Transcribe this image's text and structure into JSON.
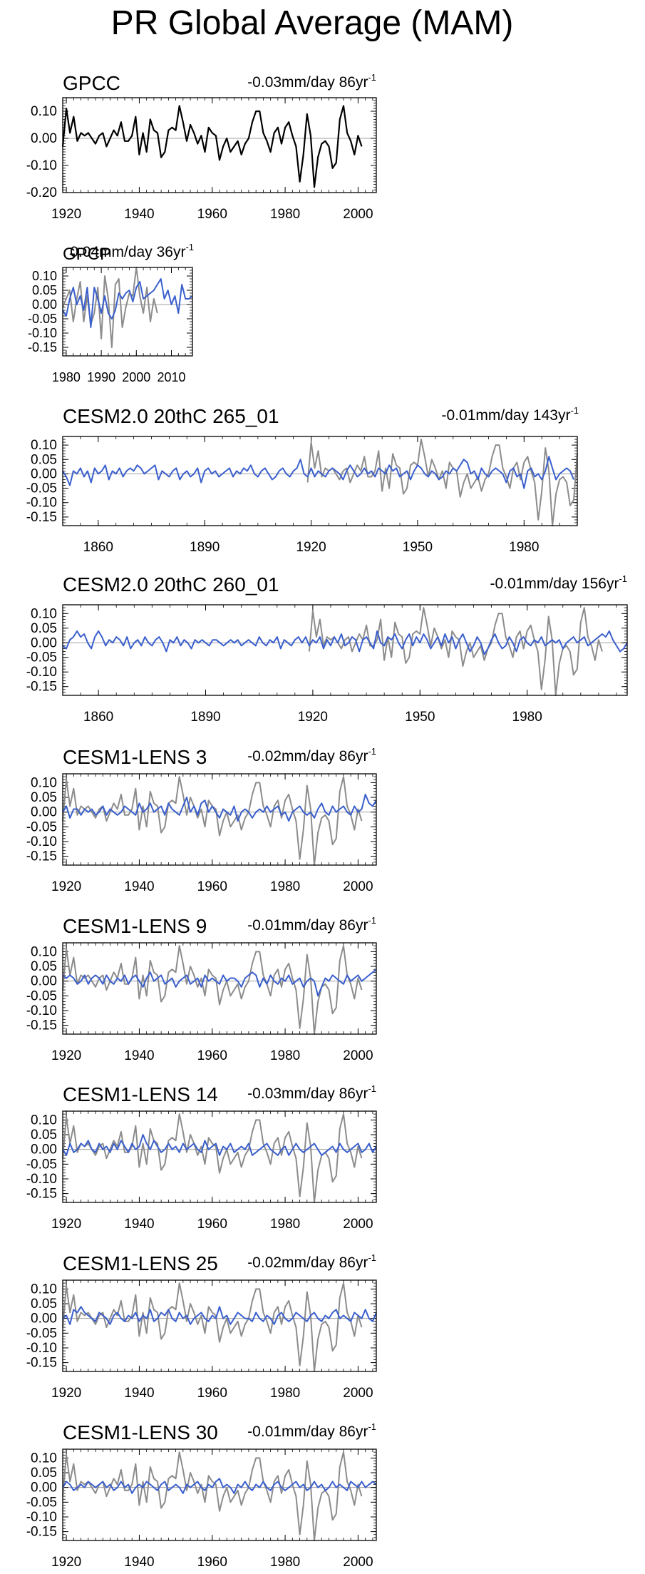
{
  "figure_title": "PR Global Average (MAM)",
  "colors": {
    "obs": "#8c8c8c",
    "model": "#3a5fcd",
    "gpcc": "#000000",
    "zero": "#a0a0a0",
    "frame": "#000000"
  },
  "chart_data": [
    {
      "type": "line",
      "title": "GPCC",
      "trend_value": "-0.03mm/day 86",
      "trend_unit": "yr",
      "trend_exp": "-1",
      "xlim": [
        1919,
        2005
      ],
      "ylim": [
        -0.2,
        0.15
      ],
      "xticks": [
        "1920",
        "1940",
        "1960",
        "1980",
        "2000"
      ],
      "yticks": [
        "0.10",
        "0.00",
        "-0.10",
        "-0.20"
      ],
      "series": [
        {
          "name": "GPCC",
          "color": "#000000",
          "x0": 1919,
          "values": [
            -0.03,
            0.11,
            0.02,
            0.08,
            -0.01,
            0.02,
            0.01,
            0.02,
            0.0,
            -0.02,
            0.01,
            0.02,
            -0.03,
            0.0,
            0.03,
            0.01,
            0.06,
            -0.01,
            -0.01,
            0.01,
            0.08,
            -0.06,
            0.02,
            -0.05,
            0.07,
            0.03,
            0.02,
            -0.07,
            -0.05,
            0.03,
            0.04,
            0.03,
            0.12,
            0.06,
            -0.01,
            0.05,
            0.02,
            -0.02,
            0.01,
            -0.05,
            0.04,
            0.02,
            0.01,
            -0.08,
            -0.03,
            0.0,
            -0.05,
            -0.03,
            -0.01,
            -0.06,
            -0.02,
            0.0,
            0.06,
            0.1,
            0.1,
            0.02,
            -0.01,
            -0.05,
            0.02,
            0.04,
            -0.02,
            0.04,
            0.06,
            0.01,
            -0.03,
            -0.16,
            -0.06,
            0.09,
            0.01,
            -0.18,
            -0.07,
            -0.02,
            -0.01,
            -0.03,
            -0.11,
            -0.09,
            0.07,
            0.12,
            0.02,
            -0.01,
            -0.06,
            0.01,
            -0.03
          ]
        }
      ]
    },
    {
      "type": "line",
      "title": "GPCP",
      "trend_value": "0.04mm/day 36",
      "trend_unit": "yr",
      "trend_exp": "-1",
      "xlim": [
        1979,
        2016
      ],
      "ylim": [
        -0.18,
        0.13
      ],
      "xticks": [
        "1980",
        "1990",
        "2000",
        "2010"
      ],
      "yticks": [
        "0.10",
        "0.05",
        "0.00",
        "-0.05",
        "-0.10",
        "-0.15"
      ],
      "series": [
        {
          "name": "GPCC",
          "color": "#8c8c8c",
          "x0": 1979,
          "values": [
            -0.01,
            0.02,
            0.05,
            -0.06,
            0.02,
            0.08,
            -0.06,
            0.03,
            -0.07,
            -0.03,
            0.06,
            -0.12,
            0.1,
            0.02,
            -0.15,
            0.07,
            0.09,
            -0.08,
            -0.01,
            0.04,
            0.03,
            0.13,
            0.03,
            -0.03,
            0.06,
            -0.06,
            0.02,
            -0.03
          ]
        },
        {
          "name": "GPCP",
          "color": "#3a5fcd",
          "x0": 1979,
          "values": [
            -0.02,
            -0.04,
            0.02,
            0.06,
            0.0,
            0.03,
            -0.02,
            0.06,
            -0.08,
            0.06,
            0.02,
            -0.03,
            0.03,
            -0.03,
            -0.05,
            -0.02,
            0.04,
            0.02,
            0.04,
            0.05,
            0.01,
            0.06,
            0.08,
            0.02,
            0.03,
            0.04,
            0.05,
            0.07,
            0.09,
            0.02,
            0.05,
            0.0,
            0.03,
            -0.03,
            0.07,
            0.02,
            0.02,
            0.03
          ]
        }
      ]
    },
    {
      "type": "line",
      "title": "CESM2.0 20thC 265_01",
      "trend_value": "-0.01mm/day 143",
      "trend_unit": "yr",
      "trend_exp": "-1",
      "xlim": [
        1850,
        1995
      ],
      "ylim": [
        -0.18,
        0.13
      ],
      "xticks": [
        "1860",
        "1890",
        "1920",
        "1950",
        "1980"
      ],
      "yticks": [
        "0.10",
        "0.05",
        "0.00",
        "-0.05",
        "-0.10",
        "-0.15"
      ],
      "series": []
    },
    {
      "type": "line",
      "title": "CESM2.0 20thC 260_01",
      "trend_value": "-0.01mm/day 156",
      "trend_unit": "yr",
      "trend_exp": "-1",
      "xlim": [
        1850,
        2008
      ],
      "ylim": [
        -0.18,
        0.13
      ],
      "xticks": [
        "1860",
        "1890",
        "1920",
        "1950",
        "1980"
      ],
      "yticks": [
        "0.10",
        "0.05",
        "0.00",
        "-0.05",
        "-0.10",
        "-0.15"
      ],
      "series": []
    },
    {
      "type": "line",
      "title": "CESM1-LENS 3",
      "trend_value": "-0.02mm/day 86",
      "trend_unit": "yr",
      "trend_exp": "-1",
      "xlim": [
        1919,
        2005
      ],
      "ylim": [
        -0.18,
        0.13
      ],
      "xticks": [
        "1920",
        "1940",
        "1960",
        "1980",
        "2000"
      ],
      "yticks": [
        "0.10",
        "0.05",
        "0.00",
        "-0.05",
        "-0.10",
        "-0.15"
      ],
      "series": []
    },
    {
      "type": "line",
      "title": "CESM1-LENS 9",
      "trend_value": "-0.01mm/day 86",
      "trend_unit": "yr",
      "trend_exp": "-1",
      "xlim": [
        1919,
        2005
      ],
      "ylim": [
        -0.18,
        0.13
      ],
      "xticks": [
        "1920",
        "1940",
        "1960",
        "1980",
        "2000"
      ],
      "yticks": [
        "0.10",
        "0.05",
        "0.00",
        "-0.05",
        "-0.10",
        "-0.15"
      ],
      "series": []
    },
    {
      "type": "line",
      "title": "CESM1-LENS 14",
      "trend_value": "-0.03mm/day 86",
      "trend_unit": "yr",
      "trend_exp": "-1",
      "xlim": [
        1919,
        2005
      ],
      "ylim": [
        -0.18,
        0.13
      ],
      "xticks": [
        "1920",
        "1940",
        "1960",
        "1980",
        "2000"
      ],
      "yticks": [
        "0.10",
        "0.05",
        "0.00",
        "-0.05",
        "-0.10",
        "-0.15"
      ],
      "series": []
    },
    {
      "type": "line",
      "title": "CESM1-LENS 25",
      "trend_value": "-0.02mm/day 86",
      "trend_unit": "yr",
      "trend_exp": "-1",
      "xlim": [
        1919,
        2005
      ],
      "ylim": [
        -0.18,
        0.13
      ],
      "xticks": [
        "1920",
        "1940",
        "1960",
        "1980",
        "2000"
      ],
      "yticks": [
        "0.10",
        "0.05",
        "0.00",
        "-0.05",
        "-0.10",
        "-0.15"
      ],
      "series": []
    },
    {
      "type": "line",
      "title": "CESM1-LENS 30",
      "trend_value": "-0.01mm/day 86",
      "trend_unit": "yr",
      "trend_exp": "-1",
      "xlim": [
        1919,
        2005
      ],
      "ylim": [
        -0.18,
        0.13
      ],
      "xticks": [
        "1920",
        "1940",
        "1960",
        "1980",
        "2000"
      ],
      "yticks": [
        "0.10",
        "0.05",
        "0.00",
        "-0.05",
        "-0.10",
        "-0.15"
      ],
      "series": []
    }
  ],
  "model_series": {
    "observed_reference": "GPCC",
    "cesm2_265": [
      0.01,
      -0.01,
      -0.04,
      0.01,
      0.0,
      0.02,
      -0.01,
      0.01,
      -0.03,
      0.02,
      0.0,
      0.01,
      0.03,
      -0.02,
      0.01,
      0.0,
      0.02,
      -0.01,
      0.01,
      0.02,
      0.01,
      0.03,
      0.02,
      0.0,
      0.01,
      0.02,
      0.03,
      -0.02,
      0.01,
      0.0,
      -0.01,
      0.01,
      0.02,
      -0.02,
      0.0,
      0.01,
      -0.01,
      0.0,
      0.02,
      -0.03,
      0.01,
      0.02,
      0.0,
      0.01,
      -0.01,
      0.0,
      0.01,
      0.02,
      -0.01,
      0.01,
      0.0,
      0.02,
      0.01,
      0.03,
      0.0,
      -0.01,
      0.01,
      0.02,
      0.0,
      -0.02,
      -0.01,
      0.01,
      0.02,
      0.0,
      -0.01,
      0.01,
      0.02,
      0.05,
      0.0,
      -0.01,
      0.02,
      -0.01,
      0.01,
      0.0,
      -0.01,
      0.01,
      0.02,
      0.01,
      0.0,
      -0.02,
      0.01,
      0.03,
      0.01,
      -0.01,
      0.0,
      0.02,
      0.0,
      0.01,
      -0.01,
      0.02,
      0.01,
      0.0,
      0.03,
      0.01,
      0.02,
      -0.01,
      0.0,
      0.01,
      -0.02,
      0.01,
      0.03,
      0.02,
      0.0,
      -0.01,
      0.01,
      0.0,
      -0.02,
      -0.01,
      0.01,
      0.0,
      0.02,
      0.01,
      0.03,
      0.05,
      0.04,
      0.0,
      0.01,
      -0.02,
      0.02,
      0.0,
      -0.01,
      0.01,
      0.02,
      0.01,
      0.0,
      -0.03,
      0.01,
      0.02,
      -0.01,
      0.0,
      -0.05,
      0.01,
      0.02,
      -0.01,
      0.0,
      -0.02,
      0.01,
      0.06,
      0.02,
      -0.02,
      0.0,
      0.01,
      0.02,
      0.01,
      -0.02
    ],
    "cesm2_260": [
      -0.01,
      -0.02,
      0.01,
      0.02,
      0.04,
      0.02,
      0.03,
      0.0,
      -0.02,
      0.02,
      0.04,
      0.02,
      -0.01,
      0.01,
      0.0,
      0.02,
      0.01,
      -0.01,
      0.02,
      -0.02,
      0.0,
      0.01,
      -0.01,
      0.02,
      0.0,
      -0.01,
      0.01,
      0.02,
      0.0,
      -0.03,
      0.01,
      0.0,
      0.02,
      -0.01,
      0.01,
      0.0,
      -0.02,
      0.01,
      0.0,
      0.01,
      0.0,
      -0.01,
      0.01,
      0.01,
      0.0,
      -0.01,
      0.0,
      0.01,
      0.0,
      0.01,
      -0.01,
      0.0,
      0.01,
      0.0,
      -0.01,
      0.02,
      0.0,
      -0.01,
      0.01,
      0.0,
      0.02,
      -0.02,
      0.01,
      0.0,
      -0.01,
      0.01,
      0.02,
      0.0,
      0.02,
      -0.01,
      0.01,
      0.0,
      0.02,
      -0.02,
      0.01,
      -0.01,
      0.02,
      0.0,
      0.03,
      -0.01,
      0.0,
      0.02,
      0.01,
      -0.03,
      0.01,
      0.02,
      0.0,
      -0.02,
      0.04,
      0.0,
      -0.01,
      0.02,
      0.01,
      0.03,
      0.0,
      -0.02,
      0.01,
      0.03,
      -0.01,
      0.02,
      0.0,
      0.03,
      0.01,
      -0.02,
      0.0,
      0.02,
      -0.01,
      0.03,
      0.0,
      0.02,
      -0.02,
      0.01,
      0.03,
      0.0,
      -0.03,
      -0.01,
      0.02,
      0.0,
      -0.04,
      -0.02,
      0.01,
      0.03,
      0.0,
      -0.02,
      -0.01,
      0.02,
      0.0,
      -0.03,
      0.01,
      0.02,
      0.0,
      -0.01,
      0.01,
      0.0,
      0.02,
      -0.01,
      0.0,
      0.01,
      0.0,
      0.01,
      -0.02,
      0.0,
      0.01,
      0.02,
      0.0,
      0.01,
      0.02,
      -0.01,
      0.0,
      0.01,
      0.02,
      0.03,
      0.02,
      0.04,
      0.01,
      -0.01,
      -0.03,
      -0.02,
      0.0
    ],
    "lens3": [
      0.0,
      0.02,
      -0.02,
      0.01,
      0.01,
      -0.01,
      0.01,
      0.0,
      0.01,
      -0.01,
      0.0,
      0.02,
      -0.01,
      0.01,
      0.0,
      -0.01,
      0.0,
      0.02,
      0.01,
      0.0,
      -0.01,
      0.03,
      0.0,
      0.01,
      0.03,
      0.0,
      0.01,
      0.02,
      -0.01,
      0.03,
      0.01,
      0.0,
      -0.01,
      0.02,
      0.05,
      0.0,
      0.02,
      -0.01,
      0.03,
      0.04,
      0.0,
      0.02,
      0.0,
      -0.02,
      0.01,
      0.0,
      -0.01,
      0.02,
      -0.03,
      0.0,
      0.01,
      0.0,
      -0.02,
      0.0,
      0.01,
      0.0,
      0.02,
      0.0,
      0.01,
      0.02,
      -0.01,
      0.0,
      -0.03,
      0.0,
      0.01,
      0.02,
      0.0,
      -0.01,
      0.0,
      -0.02,
      0.01,
      0.03,
      0.0,
      -0.01,
      0.02,
      0.0,
      0.01,
      0.02,
      0.0,
      -0.01,
      0.02,
      0.0,
      0.01,
      0.06,
      0.03,
      0.02,
      0.04
    ],
    "lens9": [
      0.02,
      0.01,
      0.02,
      0.01,
      -0.01,
      0.0,
      0.02,
      -0.01,
      0.01,
      0.02,
      0.01,
      -0.01,
      0.02,
      0.0,
      -0.01,
      0.01,
      0.0,
      0.02,
      -0.01,
      0.01,
      0.02,
      0.0,
      -0.02,
      0.01,
      0.03,
      0.0,
      0.01,
      0.02,
      -0.01,
      0.0,
      0.01,
      -0.02,
      0.0,
      0.01,
      0.02,
      -0.01,
      0.0,
      0.01,
      -0.02,
      0.02,
      0.0,
      0.01,
      0.0,
      -0.01,
      0.02,
      0.0,
      0.01,
      0.01,
      0.0,
      -0.02,
      0.01,
      0.02,
      0.03,
      0.02,
      -0.02,
      0.01,
      -0.01,
      0.02,
      0.0,
      -0.01,
      0.01,
      0.0,
      0.02,
      -0.01,
      0.0,
      0.01,
      -0.02,
      0.0,
      0.01,
      0.0,
      -0.05,
      -0.02,
      0.01,
      0.0,
      0.02,
      0.01,
      0.0,
      -0.01,
      0.02,
      0.0,
      0.01,
      0.02,
      0.0,
      0.01,
      0.02,
      0.03,
      0.04
    ],
    "lens14": [
      0.0,
      -0.02,
      0.02,
      -0.01,
      0.0,
      0.02,
      0.01,
      0.03,
      0.0,
      -0.01,
      0.02,
      0.0,
      0.01,
      -0.01,
      0.02,
      0.0,
      0.03,
      0.01,
      -0.01,
      0.02,
      0.0,
      0.01,
      0.05,
      0.02,
      0.0,
      0.03,
      0.01,
      -0.01,
      0.0,
      0.02,
      0.0,
      0.01,
      -0.01,
      0.02,
      0.0,
      0.01,
      0.02,
      0.0,
      -0.01,
      0.03,
      0.0,
      0.01,
      0.02,
      -0.02,
      0.01,
      0.0,
      0.02,
      -0.01,
      0.0,
      0.01,
      0.0,
      0.02,
      -0.02,
      -0.01,
      0.0,
      0.01,
      0.02,
      0.0,
      -0.01,
      -0.02,
      0.0,
      0.01,
      -0.02,
      0.0,
      0.02,
      0.0,
      -0.01,
      0.0,
      0.01,
      0.02,
      0.0,
      -0.02,
      -0.01,
      0.0,
      0.01,
      -0.01,
      0.02,
      0.0,
      -0.01,
      0.0,
      0.01,
      0.02,
      -0.01,
      0.0,
      0.02,
      -0.01,
      0.01
    ],
    "lens25": [
      0.0,
      0.01,
      -0.02,
      0.03,
      0.02,
      0.04,
      0.02,
      0.01,
      0.0,
      -0.01,
      0.02,
      0.01,
      0.0,
      -0.02,
      0.01,
      0.02,
      0.0,
      -0.01,
      0.01,
      0.0,
      0.02,
      -0.01,
      0.01,
      0.0,
      0.03,
      -0.01,
      0.0,
      0.02,
      0.01,
      0.03,
      0.0,
      -0.01,
      0.02,
      0.0,
      0.01,
      -0.02,
      0.0,
      0.01,
      0.02,
      0.0,
      -0.01,
      0.01,
      0.0,
      0.04,
      0.0,
      0.01,
      -0.02,
      0.0,
      0.02,
      0.01,
      0.0,
      0.0,
      -0.01,
      0.02,
      0.0,
      -0.01,
      0.01,
      0.0,
      -0.02,
      0.01,
      0.02,
      0.0,
      -0.01,
      0.0,
      0.02,
      0.01,
      0.0,
      -0.01,
      0.01,
      0.02,
      0.0,
      -0.01,
      0.01,
      0.0,
      0.02,
      0.03,
      0.0,
      0.01,
      0.0,
      -0.01,
      0.02,
      0.01,
      0.0,
      0.03,
      0.0,
      -0.01,
      0.02
    ],
    "lens30": [
      0.0,
      0.02,
      0.01,
      -0.01,
      0.0,
      0.01,
      0.0,
      0.02,
      0.01,
      0.0,
      0.01,
      0.02,
      0.0,
      0.01,
      -0.01,
      0.0,
      0.02,
      0.0,
      0.01,
      -0.02,
      0.0,
      0.01,
      0.0,
      0.02,
      0.01,
      0.0,
      -0.01,
      0.01,
      0.02,
      -0.01,
      0.0,
      0.01,
      0.0,
      -0.02,
      0.01,
      0.0,
      0.01,
      0.02,
      0.0,
      -0.01,
      0.01,
      0.0,
      0.02,
      0.03,
      0.0,
      0.01,
      0.0,
      -0.02,
      0.01,
      0.0,
      0.02,
      0.0,
      -0.01,
      0.01,
      0.0,
      0.02,
      0.0,
      -0.01,
      0.01,
      0.02,
      0.0,
      -0.01,
      0.0,
      0.01,
      0.02,
      0.0,
      0.01,
      -0.01,
      0.0,
      0.02,
      0.0,
      0.01,
      -0.01,
      0.0,
      0.02,
      0.0,
      0.01,
      0.0,
      -0.01,
      0.02,
      0.01,
      0.0,
      0.02,
      0.0,
      0.01,
      0.02,
      0.01
    ]
  }
}
